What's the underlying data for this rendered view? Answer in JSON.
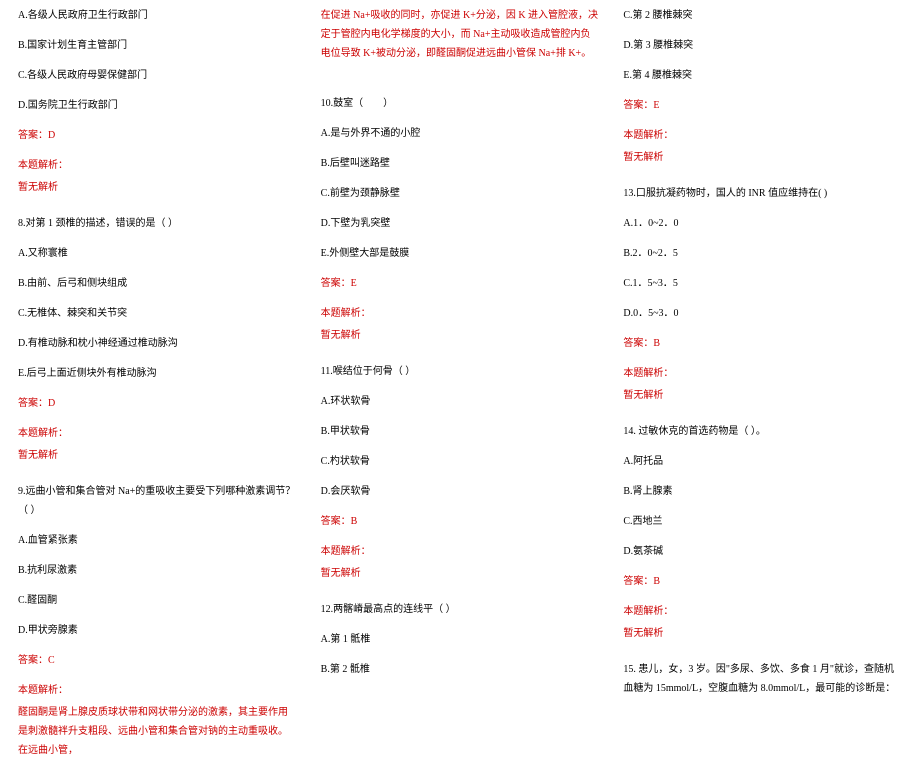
{
  "colors": {
    "text": "#000000",
    "red": "#cc0000",
    "bg": "#ffffff"
  },
  "font": {
    "family": "SimSun",
    "size_pt": 10,
    "line_height": 1.9
  },
  "col1": {
    "q7_options": [
      "A.各级人民政府卫生行政部门",
      "B.国家计划生育主管部门",
      "C.各级人民政府母婴保健部门",
      "D.国务院卫生行政部门"
    ],
    "q7_ans": "答案：D",
    "analysis_label": "本题解析：",
    "analysis_none": "暂无解析",
    "q8_stem": "8.对第 1 颈椎的描述，错误的是（ ）",
    "q8_options": [
      "A.又称寰椎",
      "B.由前、后弓和侧块组成",
      "C.无椎体、棘突和关节突",
      "D.有椎动脉和枕小神经通过椎动脉沟",
      "E.后弓上面近侧块外有椎动脉沟"
    ],
    "q8_ans": "答案：D",
    "q9_stem": "9.远曲小管和集合管对 Na+的重吸收主要受下列哪种激素调节？（ ）",
    "q9_options": [
      "A.血管紧张素",
      "B.抗利尿激素",
      "C.醛固酮",
      "D.甲状旁腺素"
    ],
    "q9_ans": "答案：C",
    "q9_explain1": "醛固酮是肾上腺皮质球状带和网状带分泌的激素，其主要作用是刺激髓袢升支粗段、远曲小管和集合管对钠的主动重吸收。在远曲小管，"
  },
  "col2": {
    "q9_explain2": "在促进 Na+吸收的同时，亦促进 K+分泌，因 K 进入管腔液，决定于管腔内电化学梯度的大小，而 Na+主动吸收造成管腔内负电位导致 K+被动分泌，即醛固酮促进远曲小管保 Na+排 K+。",
    "q10_stem": "10.鼓室（　　）",
    "q10_options": [
      "A.是与外界不通的小腔",
      "B.后壁叫迷路壁",
      "C.前壁为颈静脉壁",
      "D.下壁为乳突壁",
      "E.外侧壁大部是鼓膜"
    ],
    "q10_ans": "答案：E",
    "q11_stem": "11.喉结位于何骨（ ）",
    "q11_options": [
      "A.环状软骨",
      "B.甲状软骨",
      "C.杓状软骨",
      "D.会厌软骨"
    ],
    "q11_ans": "答案：B",
    "q12_stem": "12.两髂嵴最高点的连线平（ ）",
    "q12_options_partial": [
      "A.第 1 骶椎",
      "B.第 2 骶椎"
    ],
    "analysis_label": "本题解析：",
    "analysis_none": "暂无解析"
  },
  "col3": {
    "q12_options_rest": [
      "C.第 2 腰椎棘突",
      "D.第 3 腰椎棘突",
      "E.第 4 腰椎棘突"
    ],
    "q12_ans": "答案：E",
    "q13_stem": "13.口服抗凝药物时，国人的 INR 值应维持在( )",
    "q13_options": [
      "A.1．0~2．0",
      "B.2．0~2．5",
      "C.1．5~3．5",
      "D.0．5~3．0"
    ],
    "q13_ans": "答案：B",
    "q14_stem": "14. 过敏休克的首选药物是（ ）。",
    "q14_options": [
      "A.阿托品",
      "B.肾上腺素",
      "C.西地兰",
      "D.氨茶碱"
    ],
    "q14_ans": "答案：B",
    "q15_stem": "15. 患儿，女，3 岁。因\"多尿、多饮、多食 1 月\"就诊，查随机血糖为 15mmol/L，空腹血糖为 8.0mmol/L，最可能的诊断是：",
    "analysis_label": "本题解析：",
    "analysis_none": "暂无解析"
  }
}
